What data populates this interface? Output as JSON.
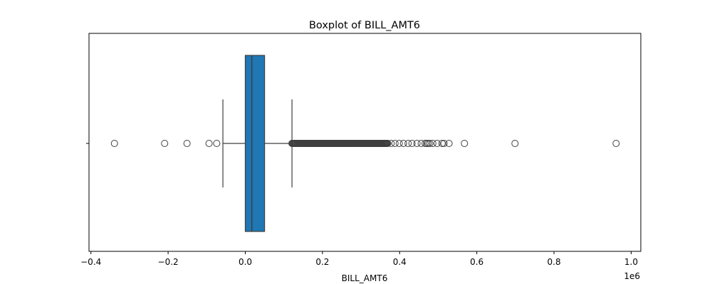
{
  "chart_data": {
    "type": "boxplot",
    "title": "Boxplot of BILL_AMT6",
    "xlabel": "BILL_AMT6",
    "ylabel": "",
    "x_offset_label": "1e6",
    "xlim": [
      -0.405,
      1.025
    ],
    "x_scale": 1000000,
    "xticks": [
      -0.4,
      -0.2,
      0.0,
      0.2,
      0.4,
      0.6,
      0.8,
      1.0
    ],
    "xtick_labels": [
      "−0.4",
      "−0.2",
      "0.0",
      "0.2",
      "0.4",
      "0.6",
      "0.8",
      "1.0"
    ],
    "orientation": "horizontal",
    "grid": false,
    "box_color": "#1f77b4",
    "line_color": "#3f3f3f",
    "box": {
      "whisker_low": -0.058,
      "q1": 0.0,
      "median": 0.017,
      "q3": 0.05,
      "whisker_high": 0.121
    },
    "outliers": [
      -0.339,
      -0.209,
      -0.151,
      -0.094,
      -0.074,
      0.568,
      0.699,
      0.961
    ],
    "outlier_band": {
      "from": 0.121,
      "to": 0.37
    },
    "outliers_sparse": [
      0.378,
      0.388,
      0.399,
      0.41,
      0.422,
      0.432,
      0.445,
      0.456,
      0.466,
      0.47,
      0.474,
      0.478,
      0.486,
      0.497,
      0.51,
      0.515,
      0.528
    ]
  }
}
